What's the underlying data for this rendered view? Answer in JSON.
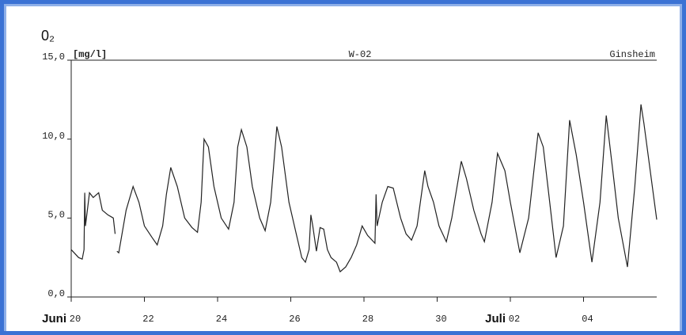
{
  "chart_data": {
    "type": "line",
    "title": "0₂",
    "unit_label": "[mg/l]",
    "station": "W-02",
    "location": "Ginsheim",
    "x": [
      0,
      0.2,
      0.3,
      0.35,
      0.37,
      0.39,
      0.5,
      0.6,
      0.75,
      0.85,
      1.0,
      1.15,
      1.2,
      1.22,
      1.25,
      1.3,
      1.5,
      1.69,
      1.85,
      2.0,
      2.2,
      2.35,
      2.5,
      2.6,
      2.72,
      2.9,
      3.1,
      3.3,
      3.45,
      3.55,
      3.63,
      3.75,
      3.9,
      4.1,
      4.3,
      4.45,
      4.55,
      4.65,
      4.8,
      4.95,
      5.15,
      5.3,
      5.45,
      5.62,
      5.75,
      5.95,
      6.15,
      6.3,
      6.4,
      6.5,
      6.55,
      6.6,
      6.7,
      6.8,
      6.9,
      7.0,
      7.1,
      7.25,
      7.35,
      7.5,
      7.65,
      7.8,
      7.95,
      8.1,
      8.3,
      8.33,
      8.36,
      8.5,
      8.65,
      8.8,
      9.0,
      9.15,
      9.3,
      9.45,
      9.66,
      9.75,
      9.9,
      10.05,
      10.25,
      10.4,
      10.66,
      10.8,
      11.0,
      11.2,
      11.29,
      11.5,
      11.65,
      11.85,
      12.0,
      12.26,
      12.5,
      12.76,
      12.9,
      13.05,
      13.25,
      13.45,
      13.62,
      13.8,
      14.0,
      14.23,
      14.45,
      14.62,
      14.8,
      14.95,
      15.2,
      15.4,
      15.57,
      15.65,
      16.0
    ],
    "series": [
      {
        "name": "O2",
        "color": "#222222",
        "values": [
          3.0,
          2.5,
          2.4,
          3.0,
          6.6,
          4.5,
          6.6,
          6.3,
          6.6,
          5.5,
          5.2,
          5.0,
          4.0,
          null,
          2.9,
          2.8,
          5.5,
          7.0,
          6.0,
          4.5,
          3.8,
          3.3,
          4.5,
          6.5,
          8.2,
          7.0,
          5.0,
          4.4,
          4.1,
          6.0,
          10.0,
          9.5,
          7.0,
          5.0,
          4.3,
          6.0,
          9.5,
          10.6,
          9.5,
          7.0,
          5.0,
          4.2,
          6.0,
          10.8,
          9.5,
          6.0,
          4.0,
          2.5,
          2.2,
          3.0,
          5.2,
          4.5,
          2.9,
          4.4,
          4.3,
          3.0,
          2.5,
          2.2,
          1.6,
          1.9,
          2.5,
          3.3,
          4.5,
          3.9,
          3.4,
          6.5,
          4.5,
          6.0,
          7.0,
          6.9,
          5.0,
          4.0,
          3.6,
          4.5,
          8.0,
          7.0,
          6.0,
          4.5,
          3.5,
          5.0,
          8.6,
          7.5,
          5.5,
          4.0,
          3.5,
          6.0,
          9.1,
          8.0,
          6.0,
          2.8,
          5.0,
          10.4,
          9.5,
          6.5,
          2.5,
          4.5,
          11.2,
          9.0,
          6.0,
          2.2,
          6.0,
          11.5,
          8.0,
          5.0,
          1.9,
          7.0,
          12.2,
          11.0,
          4.9
        ]
      }
    ],
    "xlim": [
      0,
      16
    ],
    "xticks": [
      {
        "value": 0,
        "label": "20"
      },
      {
        "value": 2,
        "label": "22"
      },
      {
        "value": 4,
        "label": "24"
      },
      {
        "value": 6,
        "label": "26"
      },
      {
        "value": 8,
        "label": "28"
      },
      {
        "value": 10,
        "label": "30"
      },
      {
        "value": 12,
        "label": "02"
      },
      {
        "value": 14,
        "label": "04"
      }
    ],
    "months": [
      {
        "value": 0,
        "label": "Juni"
      },
      {
        "value": 12,
        "label": "Juli"
      }
    ],
    "ylim": [
      0,
      15
    ],
    "yticks": [
      {
        "value": 0,
        "label": "0,0"
      },
      {
        "value": 5,
        "label": "5,0"
      },
      {
        "value": 10,
        "label": "10,0"
      },
      {
        "value": 15,
        "label": "15,0"
      }
    ]
  }
}
